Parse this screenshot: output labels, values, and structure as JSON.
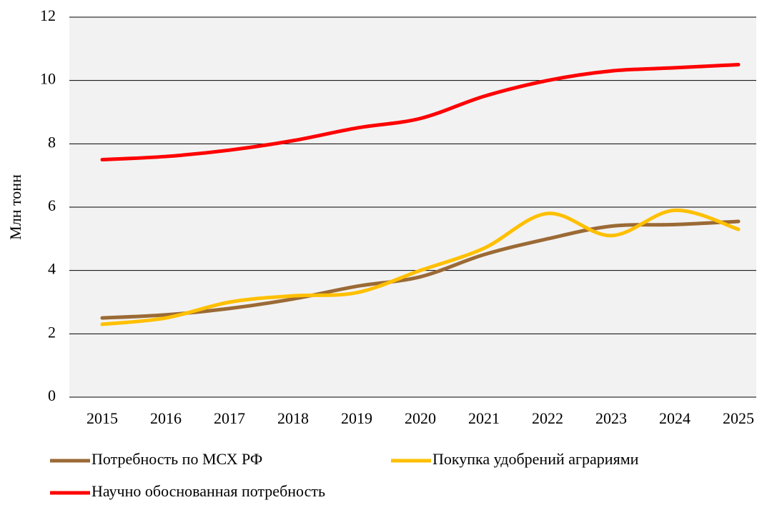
{
  "chart_data": {
    "type": "line",
    "y_label": "Млн тонн",
    "categories": [
      "2015",
      "2016",
      "2017",
      "2018",
      "2019",
      "2020",
      "2021",
      "2022",
      "2023",
      "2024",
      "2025"
    ],
    "series": [
      {
        "name": "Потребность по МСХ РФ",
        "color": "#9b6a35",
        "values": [
          2.5,
          2.6,
          2.8,
          3.1,
          3.5,
          3.8,
          4.5,
          5.0,
          5.4,
          5.45,
          5.55
        ]
      },
      {
        "name": "Покупка удобрений аграриями",
        "color": "#ffc000",
        "values": [
          2.3,
          2.5,
          3.0,
          3.2,
          3.3,
          4.0,
          4.7,
          5.8,
          5.1,
          5.9,
          5.3
        ]
      },
      {
        "name": "Научно обоснованная потребность",
        "color": "#ff0000",
        "values": [
          7.5,
          7.6,
          7.8,
          8.1,
          8.5,
          8.8,
          9.5,
          10.0,
          10.3,
          10.4,
          10.5
        ]
      }
    ],
    "ylim": [
      0,
      12
    ],
    "yticks": [
      0,
      2,
      4,
      6,
      8,
      10,
      12
    ],
    "grid": true,
    "smooth": true
  }
}
